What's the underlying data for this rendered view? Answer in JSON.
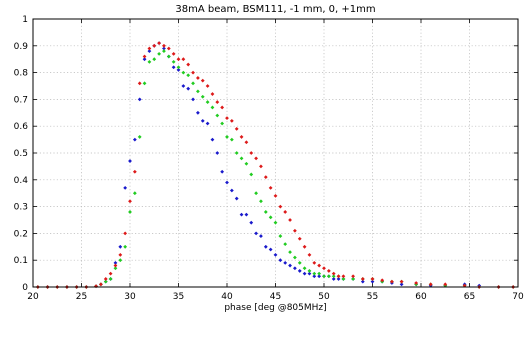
{
  "chart_data": {
    "type": "scatter",
    "title": "38mA beam, BSM111, -1 mm, 0, +1mm",
    "xlabel": "phase [deg @805MHz]",
    "ylabel": "",
    "xlim": [
      20,
      70
    ],
    "ylim": [
      0,
      1
    ],
    "xticks": [
      "20",
      "25",
      "30",
      "35",
      "40",
      "45",
      "50",
      "55",
      "60",
      "65",
      "70"
    ],
    "yticks": [
      "0",
      "0.1",
      "0.2",
      "0.3",
      "0.4",
      "0.5",
      "0.6",
      "0.7",
      "0.8",
      "0.9",
      "1"
    ],
    "grid": true,
    "legend": "none",
    "series": [
      {
        "color": "#1a1acc",
        "x": [
          20.5,
          21.5,
          22.5,
          23.5,
          24.5,
          25.5,
          26.5,
          27.0,
          27.5,
          28.0,
          28.5,
          29.0,
          29.5,
          30.0,
          30.5,
          31.0,
          31.5,
          32.0,
          32.5,
          33.0,
          33.5,
          34.0,
          34.5,
          35.0,
          35.5,
          36.0,
          36.5,
          37.0,
          37.5,
          38.0,
          38.5,
          39.0,
          39.5,
          40.0,
          40.5,
          41.0,
          41.5,
          42.0,
          42.5,
          43.0,
          43.5,
          44.0,
          44.5,
          45.0,
          45.5,
          46.0,
          46.5,
          47.0,
          47.5,
          48.0,
          48.5,
          49.0,
          49.5,
          50.0,
          50.5,
          51.0,
          51.5,
          52.0,
          53.0,
          54.0,
          55.0,
          56.0,
          57.0,
          58.0,
          59.5,
          61.0,
          62.5,
          64.5,
          66.0,
          68.0,
          69.5
        ],
        "y": [
          0,
          0,
          0,
          0,
          0,
          0,
          0.003,
          0.01,
          0.02,
          0.03,
          0.09,
          0.15,
          0.37,
          0.47,
          0.55,
          0.7,
          0.85,
          0.88,
          0.9,
          0.91,
          0.89,
          0.86,
          0.82,
          0.81,
          0.75,
          0.74,
          0.7,
          0.65,
          0.62,
          0.61,
          0.55,
          0.5,
          0.43,
          0.39,
          0.36,
          0.33,
          0.27,
          0.27,
          0.24,
          0.2,
          0.19,
          0.15,
          0.14,
          0.12,
          0.1,
          0.09,
          0.08,
          0.07,
          0.06,
          0.05,
          0.05,
          0.04,
          0.04,
          0.04,
          0.04,
          0.03,
          0.03,
          0.03,
          0.03,
          0.02,
          0.02,
          0.02,
          0.015,
          0.01,
          0.01,
          0.005,
          0.005,
          0.01,
          0.005,
          0,
          0
        ]
      },
      {
        "color": "#22cc22",
        "x": [
          20.5,
          21.5,
          22.5,
          23.5,
          24.5,
          25.5,
          26.5,
          27.0,
          27.5,
          28.0,
          28.5,
          29.0,
          29.5,
          30.0,
          30.5,
          31.0,
          31.5,
          32.0,
          32.5,
          33.0,
          33.5,
          34.0,
          34.5,
          35.0,
          35.5,
          36.0,
          36.5,
          37.0,
          37.5,
          38.0,
          38.5,
          39.0,
          39.5,
          40.0,
          40.5,
          41.0,
          41.5,
          42.0,
          42.5,
          43.0,
          43.5,
          44.0,
          44.5,
          45.0,
          45.5,
          46.0,
          46.5,
          47.0,
          47.5,
          48.0,
          48.5,
          49.0,
          49.5,
          50.0,
          50.5,
          51.0,
          51.5,
          52.0,
          53.0,
          54.0,
          55.0,
          56.0,
          57.0,
          58.0,
          59.5,
          61.0,
          62.5,
          64.5,
          66.0,
          68.0,
          69.5
        ],
        "y": [
          0,
          0,
          0,
          0,
          0,
          0,
          0.003,
          0.01,
          0.02,
          0.03,
          0.07,
          0.1,
          0.15,
          0.28,
          0.35,
          0.56,
          0.76,
          0.84,
          0.85,
          0.87,
          0.88,
          0.86,
          0.84,
          0.82,
          0.8,
          0.79,
          0.76,
          0.73,
          0.71,
          0.69,
          0.67,
          0.64,
          0.61,
          0.56,
          0.55,
          0.5,
          0.48,
          0.46,
          0.42,
          0.35,
          0.32,
          0.28,
          0.26,
          0.24,
          0.19,
          0.16,
          0.13,
          0.11,
          0.09,
          0.07,
          0.06,
          0.05,
          0.05,
          0.04,
          0.04,
          0.04,
          0.04,
          0.03,
          0.03,
          0.03,
          0.03,
          0.02,
          0.02,
          0.02,
          0.01,
          0.01,
          0.005,
          0.005,
          0,
          0,
          0
        ]
      },
      {
        "color": "#dd1a1a",
        "x": [
          20.5,
          21.5,
          22.5,
          23.5,
          24.5,
          25.5,
          26.5,
          27.0,
          27.5,
          28.0,
          28.5,
          29.0,
          29.5,
          30.0,
          30.5,
          31.0,
          31.5,
          32.0,
          32.5,
          33.0,
          33.5,
          34.0,
          34.5,
          35.0,
          35.5,
          36.0,
          36.5,
          37.0,
          37.5,
          38.0,
          38.5,
          39.0,
          39.5,
          40.0,
          40.5,
          41.0,
          41.5,
          42.0,
          42.5,
          43.0,
          43.5,
          44.0,
          44.5,
          45.0,
          45.5,
          46.0,
          46.5,
          47.0,
          47.5,
          48.0,
          48.5,
          49.0,
          49.5,
          50.0,
          50.5,
          51.0,
          51.5,
          52.0,
          53.0,
          54.0,
          55.0,
          56.0,
          57.0,
          58.0,
          59.5,
          61.0,
          62.5,
          64.5,
          66.0,
          68.0,
          69.5
        ],
        "y": [
          0,
          0,
          0,
          0,
          0,
          0,
          0.003,
          0.01,
          0.03,
          0.05,
          0.08,
          0.12,
          0.2,
          0.32,
          0.43,
          0.76,
          0.86,
          0.89,
          0.9,
          0.91,
          0.9,
          0.89,
          0.87,
          0.85,
          0.85,
          0.83,
          0.8,
          0.78,
          0.77,
          0.75,
          0.72,
          0.69,
          0.67,
          0.63,
          0.62,
          0.59,
          0.56,
          0.54,
          0.5,
          0.48,
          0.45,
          0.41,
          0.37,
          0.34,
          0.3,
          0.28,
          0.25,
          0.21,
          0.18,
          0.15,
          0.12,
          0.09,
          0.08,
          0.07,
          0.06,
          0.05,
          0.04,
          0.04,
          0.04,
          0.03,
          0.03,
          0.025,
          0.02,
          0.02,
          0.015,
          0.01,
          0.01,
          0.005,
          0,
          0,
          0
        ]
      }
    ]
  }
}
